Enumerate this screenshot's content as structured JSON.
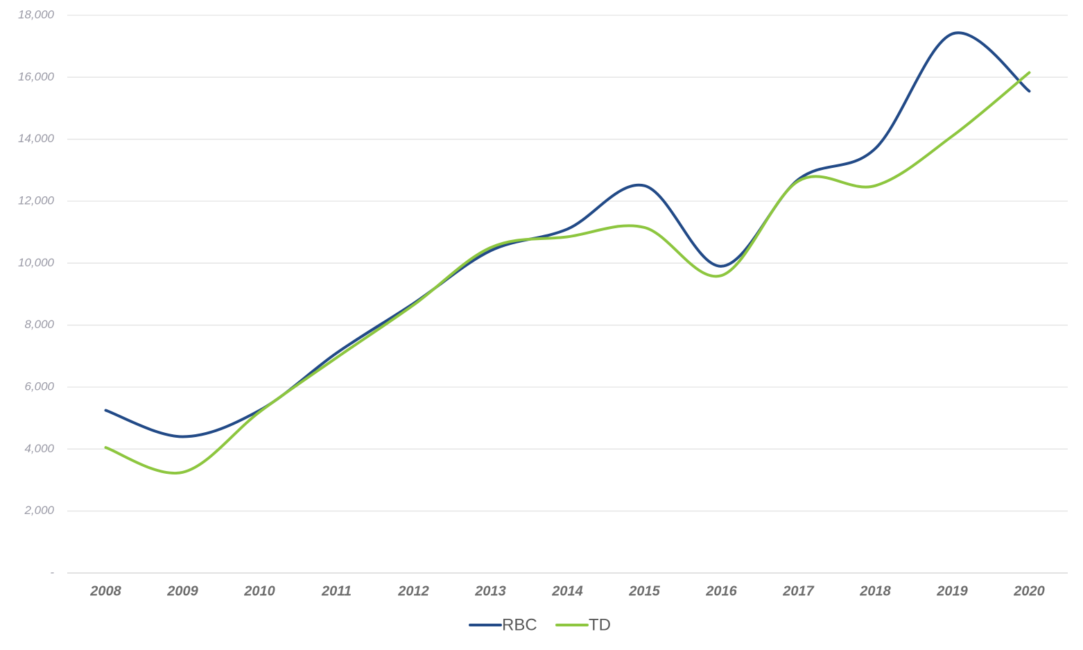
{
  "chart_data": {
    "type": "line",
    "smooth": true,
    "grid": true,
    "legend": "bottom",
    "categories": [
      "2008",
      "2009",
      "2010",
      "2011",
      "2012",
      "2013",
      "2014",
      "2015",
      "2016",
      "2017",
      "2018",
      "2019",
      "2020"
    ],
    "series": [
      {
        "name": "RBC",
        "color": "#224a87",
        "values": [
          5250,
          4400,
          5250,
          7100,
          8700,
          10400,
          11100,
          12500,
          9900,
          12700,
          13700,
          17400,
          15550
        ]
      },
      {
        "name": "TD",
        "color": "#8dc63f",
        "values": [
          4050,
          3250,
          5200,
          6950,
          8650,
          10500,
          10850,
          11150,
          9600,
          12650,
          12500,
          14100,
          16150
        ]
      }
    ],
    "ylim": [
      0,
      18000
    ],
    "yticks": [
      {
        "value": 0,
        "label": "-"
      },
      {
        "value": 2000,
        "label": "2,000"
      },
      {
        "value": 4000,
        "label": "4,000"
      },
      {
        "value": 6000,
        "label": "6,000"
      },
      {
        "value": 8000,
        "label": "8,000"
      },
      {
        "value": 10000,
        "label": "10,000"
      },
      {
        "value": 12000,
        "label": "12,000"
      },
      {
        "value": 14000,
        "label": "14,000"
      },
      {
        "value": 16000,
        "label": "16,000"
      },
      {
        "value": 18000,
        "label": "18,000"
      }
    ]
  }
}
